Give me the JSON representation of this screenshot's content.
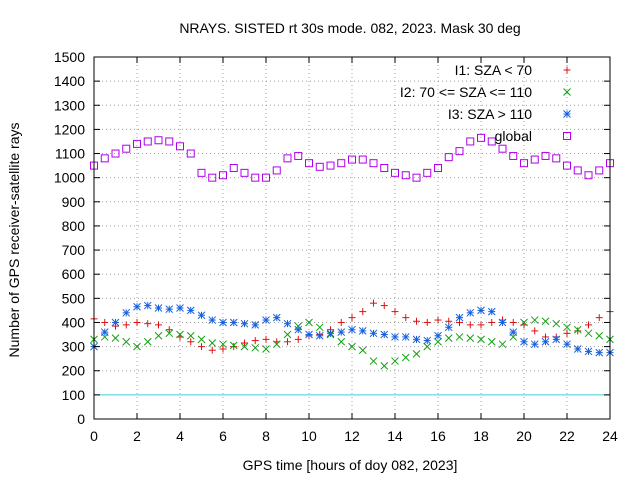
{
  "chart_data": {
    "type": "scatter",
    "title": "NRAYS. SISTED rt 30s mode. 082, 2023. Mask 30 deg",
    "xlabel": "GPS time [hours of doy 082, 2023]",
    "ylabel": "Number of GPS receiver-satellite rays",
    "xlim": [
      0,
      24
    ],
    "ylim": [
      0,
      1500
    ],
    "xticks": [
      0,
      2,
      4,
      6,
      8,
      10,
      12,
      14,
      16,
      18,
      20,
      22,
      24
    ],
    "yticks": [
      0,
      100,
      200,
      300,
      400,
      500,
      600,
      700,
      800,
      900,
      1000,
      1100,
      1200,
      1300,
      1400,
      1500
    ],
    "grid": true,
    "legend_position": "top-right",
    "threshold": {
      "value": 100,
      "color": "#40d0e0"
    },
    "series": [
      {
        "name": "I1: SZA < 70",
        "marker": "plus",
        "color": "#e01010",
        "x": [
          0,
          0.5,
          1,
          1.5,
          2,
          2.5,
          3,
          3.5,
          4,
          4.5,
          5,
          5.5,
          6,
          6.5,
          7,
          7.5,
          8,
          8.5,
          9,
          9.5,
          10,
          10.5,
          11,
          11.5,
          12,
          12.5,
          13,
          13.5,
          14,
          14.5,
          15,
          15.5,
          16,
          16.5,
          17,
          17.5,
          18,
          18.5,
          19,
          19.5,
          20,
          20.5,
          21,
          21.5,
          22,
          22.5,
          23,
          23.5,
          24
        ],
        "values": [
          415,
          400,
          385,
          390,
          400,
          395,
          390,
          370,
          340,
          320,
          300,
          285,
          290,
          300,
          315,
          325,
          330,
          320,
          320,
          330,
          345,
          350,
          370,
          400,
          420,
          445,
          480,
          470,
          445,
          420,
          405,
          400,
          410,
          405,
          400,
          390,
          390,
          400,
          410,
          400,
          390,
          365,
          340,
          340,
          355,
          365,
          390,
          420,
          445
        ]
      },
      {
        "name": "I2: 70 <= SZA <= 110",
        "marker": "cross",
        "color": "#10a010",
        "x": [
          0,
          0.5,
          1,
          1.5,
          2,
          2.5,
          3,
          3.5,
          4,
          4.5,
          5,
          5.5,
          6,
          6.5,
          7,
          7.5,
          8,
          8.5,
          9,
          9.5,
          10,
          10.5,
          11,
          11.5,
          12,
          12.5,
          13,
          13.5,
          14,
          14.5,
          15,
          15.5,
          16,
          16.5,
          17,
          17.5,
          18,
          18.5,
          19,
          19.5,
          20,
          20.5,
          21,
          21.5,
          22,
          22.5,
          23,
          23.5,
          24
        ],
        "values": [
          330,
          340,
          335,
          320,
          300,
          320,
          345,
          355,
          350,
          345,
          330,
          315,
          310,
          305,
          300,
          295,
          290,
          310,
          350,
          385,
          400,
          380,
          350,
          320,
          300,
          285,
          240,
          220,
          240,
          255,
          270,
          300,
          320,
          335,
          340,
          335,
          330,
          320,
          310,
          340,
          400,
          410,
          405,
          395,
          380,
          370,
          355,
          345,
          330
        ]
      },
      {
        "name": "I3: SZA > 110",
        "marker": "star",
        "color": "#1560e0",
        "x": [
          0,
          0.5,
          1,
          1.5,
          2,
          2.5,
          3,
          3.5,
          4,
          4.5,
          5,
          5.5,
          6,
          6.5,
          7,
          7.5,
          8,
          8.5,
          9,
          9.5,
          10,
          10.5,
          11,
          11.5,
          12,
          12.5,
          13,
          13.5,
          14,
          14.5,
          15,
          15.5,
          16,
          16.5,
          17,
          17.5,
          18,
          18.5,
          19,
          19.5,
          20,
          20.5,
          21,
          21.5,
          22,
          22.5,
          23,
          23.5,
          24
        ],
        "values": [
          300,
          360,
          400,
          440,
          465,
          470,
          460,
          455,
          460,
          450,
          430,
          410,
          400,
          400,
          395,
          390,
          410,
          420,
          395,
          370,
          350,
          345,
          355,
          360,
          370,
          365,
          355,
          350,
          340,
          340,
          330,
          325,
          345,
          380,
          420,
          440,
          450,
          445,
          400,
          360,
          320,
          310,
          320,
          330,
          310,
          290,
          280,
          275,
          275
        ]
      },
      {
        "name": "global",
        "marker": "square",
        "color": "#b000e8",
        "x": [
          0,
          0.5,
          1,
          1.5,
          2,
          2.5,
          3,
          3.5,
          4,
          4.5,
          5,
          5.5,
          6,
          6.5,
          7,
          7.5,
          8,
          8.5,
          9,
          9.5,
          10,
          10.5,
          11,
          11.5,
          12,
          12.5,
          13,
          13.5,
          14,
          14.5,
          15,
          15.5,
          16,
          16.5,
          17,
          17.5,
          18,
          18.5,
          19,
          19.5,
          20,
          20.5,
          21,
          21.5,
          22,
          22.5,
          23,
          23.5,
          24
        ],
        "values": [
          1050,
          1080,
          1100,
          1120,
          1140,
          1150,
          1155,
          1150,
          1130,
          1100,
          1020,
          1000,
          1010,
          1040,
          1020,
          1000,
          1000,
          1030,
          1080,
          1090,
          1060,
          1045,
          1050,
          1060,
          1075,
          1075,
          1060,
          1040,
          1020,
          1010,
          1000,
          1020,
          1040,
          1085,
          1110,
          1150,
          1165,
          1150,
          1120,
          1090,
          1060,
          1075,
          1090,
          1080,
          1050,
          1030,
          1010,
          1030,
          1060
        ]
      }
    ]
  }
}
